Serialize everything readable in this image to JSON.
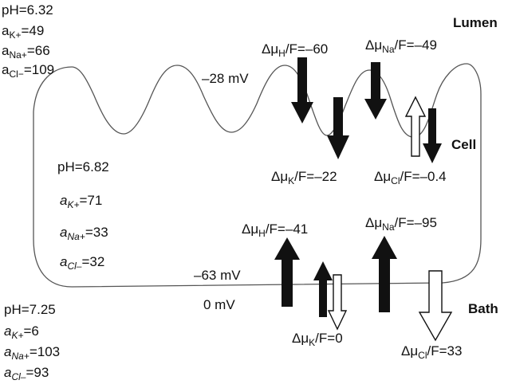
{
  "regions": {
    "lumen": "Lumen",
    "cell": "Cell",
    "bath": "Bath"
  },
  "lumen_conditions": {
    "ph": "pH=6.32",
    "k_sym": "a",
    "k_sub": "K+",
    "k_val": "=49",
    "na_sym": "a",
    "na_sub": "Na+",
    "na_val": "=66",
    "cl_sym": "a",
    "cl_sub": "Cl−",
    "cl_val": "=109"
  },
  "cell_conditions": {
    "ph": "pH=6.82",
    "k_sym": "a",
    "k_sub": "K+",
    "k_val": "=71",
    "na_sym": "a",
    "na_sub": "Na+",
    "na_val": "=33",
    "cl_sym": "a",
    "cl_sub": "Cl–",
    "cl_val": "=32"
  },
  "bath_conditions": {
    "ph": "pH=7.25",
    "k_sym": "a",
    "k_sub": "K+",
    "k_val": "=6",
    "na_sym": "a",
    "na_sub": "Na+",
    "na_val": "=103",
    "cl_sym": "a",
    "cl_sub": "Cl–",
    "cl_val": "=93"
  },
  "potentials": {
    "apical": "–28 mV",
    "basolateral": "–63 mV",
    "bath": "0 mV"
  },
  "apical_gradients": {
    "h": {
      "prefix": "Δμ",
      "sub": "H",
      "value": "/F=–60"
    },
    "na": {
      "prefix": "Δμ",
      "sub": "Na",
      "value": "/F=–49"
    },
    "k": {
      "prefix": "Δμ",
      "sub": "K",
      "value": "/F=–22"
    },
    "cl": {
      "prefix": "Δμ",
      "sub": "Cl",
      "value": "/F=–0.4"
    }
  },
  "basolateral_gradients": {
    "h": {
      "prefix": "Δμ",
      "sub": "H",
      "value": "/F=–41"
    },
    "na": {
      "prefix": "Δμ",
      "sub": "Na",
      "value": "/F=–95"
    },
    "k": {
      "prefix": "Δμ",
      "sub": "K",
      "value": "/F=0"
    },
    "cl": {
      "prefix": "Δμ",
      "sub": "Cl",
      "value": "/F=33"
    }
  }
}
